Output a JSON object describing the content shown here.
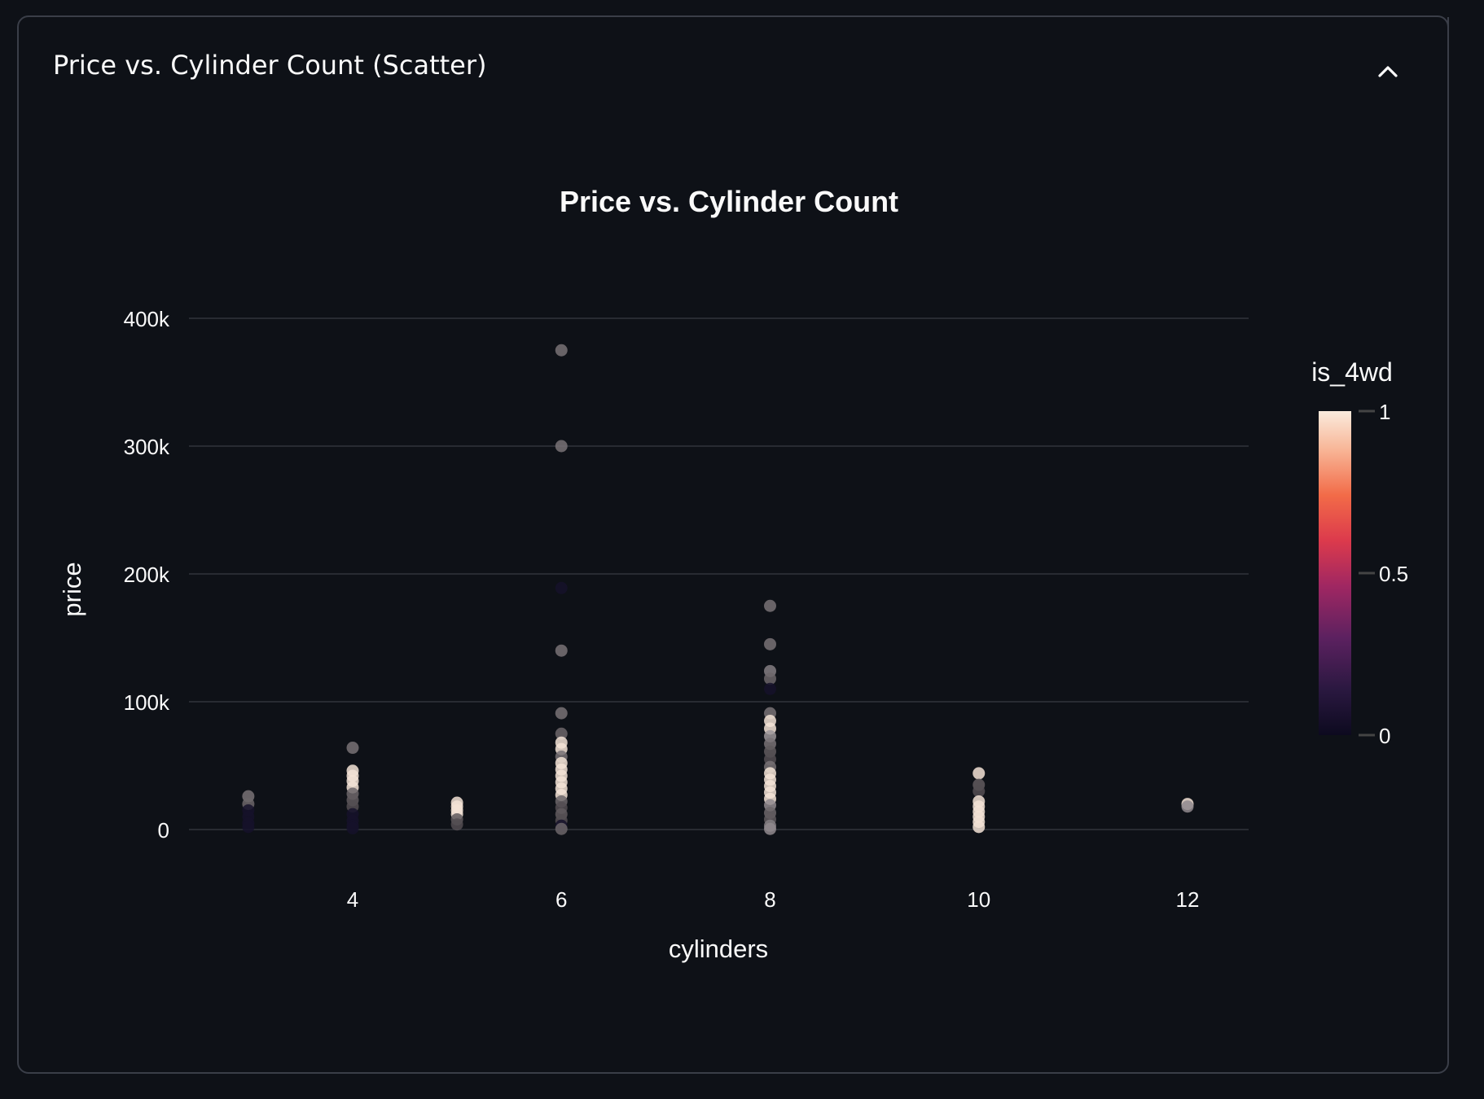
{
  "expander": {
    "title": "Price vs. Cylinder Count (Scatter)",
    "toggle_icon": "chevron-up-icon"
  },
  "chart_data": {
    "type": "scatter",
    "title": "Price vs. Cylinder Count",
    "xlabel": "cylinders",
    "ylabel": "price",
    "xlim": [
      2.4,
      12.6
    ],
    "ylim": [
      -20000,
      420000
    ],
    "x_ticks": [
      4,
      6,
      8,
      10,
      12
    ],
    "x_tick_labels": [
      "4",
      "6",
      "8",
      "10",
      "12"
    ],
    "y_ticks": [
      0,
      100000,
      200000,
      300000,
      400000
    ],
    "y_tick_labels": [
      "0",
      "100k",
      "200k",
      "300k",
      "400k"
    ],
    "grid": "horizontal",
    "colorbar": {
      "title": "is_4wd",
      "ticks": [
        0,
        0.5,
        1
      ],
      "tick_labels": [
        "0",
        "0.5",
        "1"
      ],
      "colors": [
        "#0d0a1f",
        "#3b1c4f",
        "#7a2b63",
        "#c1275f",
        "#ea4d3c",
        "#f7926b",
        "#fbd3bc",
        "#faebdd"
      ]
    },
    "series": [
      {
        "points": [
          [
            3,
            26000,
            0.5
          ],
          [
            3,
            20000,
            0.4
          ],
          [
            3,
            15000,
            0.1
          ],
          [
            3,
            10000,
            0.05
          ],
          [
            3,
            5000,
            0.0
          ],
          [
            3,
            2000,
            0.0
          ],
          [
            4,
            64000,
            0.5
          ],
          [
            4,
            46000,
            0.9
          ],
          [
            4,
            42000,
            1.0
          ],
          [
            4,
            38000,
            1.0
          ],
          [
            4,
            33000,
            1.0
          ],
          [
            4,
            28000,
            0.4
          ],
          [
            4,
            23000,
            0.3
          ],
          [
            4,
            18000,
            0.2
          ],
          [
            4,
            12000,
            0.1
          ],
          [
            4,
            7000,
            0.05
          ],
          [
            4,
            3000,
            0.0
          ],
          [
            4,
            1000,
            0.0
          ],
          [
            5,
            21000,
            1.0
          ],
          [
            5,
            18000,
            1.0
          ],
          [
            5,
            15000,
            1.0
          ],
          [
            5,
            12000,
            0.9
          ],
          [
            5,
            8000,
            0.3
          ],
          [
            5,
            4000,
            0.2
          ],
          [
            6,
            375000,
            0.5
          ],
          [
            6,
            300000,
            0.5
          ],
          [
            6,
            189000,
            0.0
          ],
          [
            6,
            140000,
            0.5
          ],
          [
            6,
            91000,
            0.5
          ],
          [
            6,
            75000,
            0.4
          ],
          [
            6,
            68000,
            0.9
          ],
          [
            6,
            63000,
            1.0
          ],
          [
            6,
            57000,
            0.5
          ],
          [
            6,
            52000,
            1.0
          ],
          [
            6,
            47000,
            1.0
          ],
          [
            6,
            42000,
            1.0
          ],
          [
            6,
            37000,
            1.0
          ],
          [
            6,
            32000,
            1.0
          ],
          [
            6,
            27000,
            0.9
          ],
          [
            6,
            22000,
            0.4
          ],
          [
            6,
            17000,
            0.2
          ],
          [
            6,
            12000,
            0.3
          ],
          [
            6,
            7000,
            0.2
          ],
          [
            6,
            3000,
            0.1
          ],
          [
            6,
            500,
            0.4
          ],
          [
            8,
            175000,
            0.5
          ],
          [
            8,
            145000,
            0.5
          ],
          [
            8,
            124000,
            0.6
          ],
          [
            8,
            118000,
            0.4
          ],
          [
            8,
            110000,
            0.0
          ],
          [
            8,
            91000,
            0.5
          ],
          [
            8,
            85000,
            0.9
          ],
          [
            8,
            79000,
            1.0
          ],
          [
            8,
            73000,
            0.8
          ],
          [
            8,
            67000,
            0.5
          ],
          [
            8,
            61000,
            0.3
          ],
          [
            8,
            55000,
            0.2
          ],
          [
            8,
            49000,
            0.5
          ],
          [
            8,
            44000,
            1.0
          ],
          [
            8,
            39000,
            1.0
          ],
          [
            8,
            34000,
            1.0
          ],
          [
            8,
            29000,
            1.0
          ],
          [
            8,
            24000,
            1.0
          ],
          [
            8,
            19000,
            0.7
          ],
          [
            8,
            13000,
            0.4
          ],
          [
            8,
            8000,
            0.3
          ],
          [
            8,
            3000,
            0.6
          ],
          [
            8,
            500,
            0.7
          ],
          [
            10,
            44000,
            1.0
          ],
          [
            10,
            35000,
            0.3
          ],
          [
            10,
            30000,
            0.2
          ],
          [
            10,
            22000,
            0.9
          ],
          [
            10,
            18000,
            1.0
          ],
          [
            10,
            14000,
            1.0
          ],
          [
            10,
            10000,
            0.9
          ],
          [
            10,
            6000,
            1.0
          ],
          [
            10,
            2000,
            1.0
          ],
          [
            12,
            20000,
            0.9
          ],
          [
            12,
            18000,
            0.7
          ]
        ]
      }
    ]
  }
}
